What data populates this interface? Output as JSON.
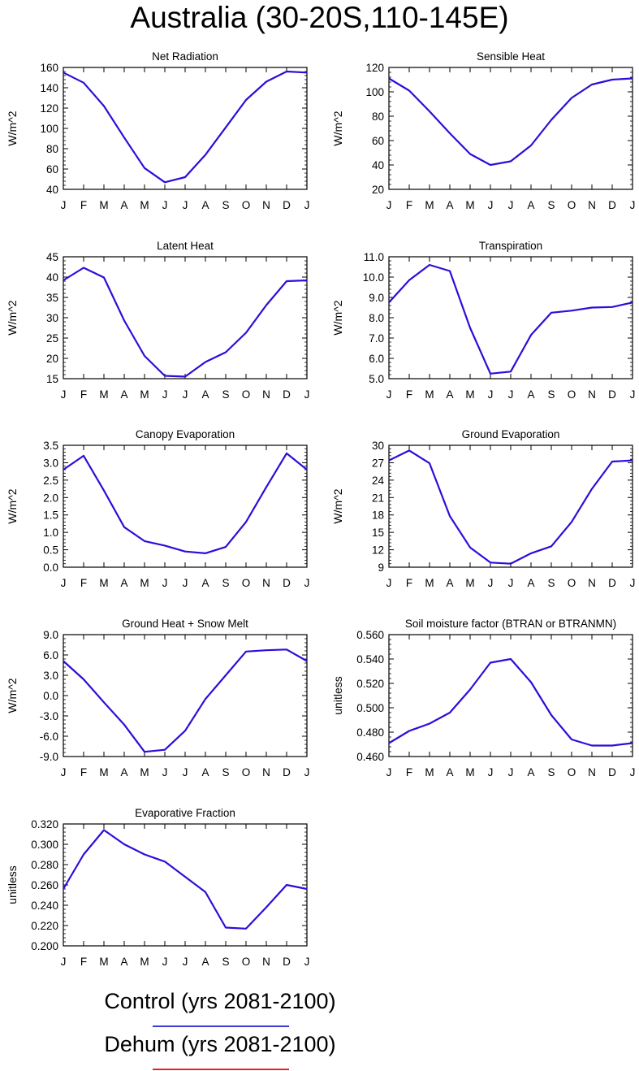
{
  "page_title": "Australia (30-20S,110-145E)",
  "legend": [
    {
      "label": "Control (yrs 2081-2100)",
      "color": "#3b3bd4"
    },
    {
      "label": "Dehum (yrs 2081-2100)",
      "color": "#ee2020"
    }
  ],
  "series_color": "#2a0fd8",
  "chart_data": [
    {
      "type": "line",
      "title": "Net Radiation",
      "ylabel": "W/m^2",
      "categories": [
        "J",
        "F",
        "M",
        "A",
        "M",
        "J",
        "J",
        "A",
        "S",
        "O",
        "N",
        "D",
        "J"
      ],
      "ylim": [
        40,
        160
      ],
      "yticks": [
        40,
        60,
        80,
        100,
        120,
        140,
        160
      ],
      "ytick_labels": [
        "40",
        "60",
        "80",
        "100",
        "120",
        "140",
        "160"
      ],
      "series": [
        {
          "name": "Control (yrs 2081-2100)",
          "values": [
            155,
            145,
            122,
            91,
            61,
            47,
            52,
            74,
            101,
            128,
            146,
            156,
            155
          ]
        }
      ]
    },
    {
      "type": "line",
      "title": "Sensible Heat",
      "ylabel": "W/m^2",
      "categories": [
        "J",
        "F",
        "M",
        "A",
        "M",
        "J",
        "J",
        "A",
        "S",
        "O",
        "N",
        "D",
        "J"
      ],
      "ylim": [
        20,
        120
      ],
      "yticks": [
        20,
        40,
        60,
        80,
        100,
        120
      ],
      "ytick_labels": [
        "20",
        "40",
        "60",
        "80",
        "100",
        "120"
      ],
      "series": [
        {
          "name": "Control (yrs 2081-2100)",
          "values": [
            111,
            101,
            84,
            66,
            49,
            40,
            43,
            56,
            77,
            95,
            106,
            110,
            111
          ]
        }
      ]
    },
    {
      "type": "line",
      "title": "Latent Heat",
      "ylabel": "W/m^2",
      "categories": [
        "J",
        "F",
        "M",
        "A",
        "M",
        "J",
        "J",
        "A",
        "S",
        "O",
        "N",
        "D",
        "J"
      ],
      "ylim": [
        15,
        45
      ],
      "yticks": [
        15,
        20,
        25,
        30,
        35,
        40,
        45
      ],
      "ytick_labels": [
        "15",
        "20",
        "25",
        "30",
        "35",
        "40",
        "45"
      ],
      "series": [
        {
          "name": "Control (yrs 2081-2100)",
          "values": [
            39.2,
            42.3,
            39.9,
            29.3,
            20.6,
            15.7,
            15.5,
            19.1,
            21.5,
            26.3,
            33.1,
            39.0,
            39.2
          ]
        }
      ]
    },
    {
      "type": "line",
      "title": "Transpiration",
      "ylabel": "W/m^2",
      "categories": [
        "J",
        "F",
        "M",
        "A",
        "M",
        "J",
        "J",
        "A",
        "S",
        "O",
        "N",
        "D",
        "J"
      ],
      "ylim": [
        5,
        11
      ],
      "yticks": [
        5,
        6,
        7,
        8,
        9,
        10,
        11
      ],
      "ytick_labels": [
        "5.0",
        "6.0",
        "7.0",
        "8.0",
        "9.0",
        "10.0",
        "11.0"
      ],
      "series": [
        {
          "name": "Control (yrs 2081-2100)",
          "values": [
            8.75,
            9.85,
            10.6,
            10.3,
            7.5,
            5.25,
            5.35,
            7.15,
            8.25,
            8.35,
            8.5,
            8.53,
            8.75
          ]
        }
      ]
    },
    {
      "type": "line",
      "title": "Canopy Evaporation",
      "ylabel": "W/m^2",
      "categories": [
        "J",
        "F",
        "M",
        "A",
        "M",
        "J",
        "J",
        "A",
        "S",
        "O",
        "N",
        "D",
        "J"
      ],
      "ylim": [
        0,
        3.5
      ],
      "yticks": [
        0,
        0.5,
        1,
        1.5,
        2,
        2.5,
        3,
        3.5
      ],
      "ytick_labels": [
        "0.0",
        "0.5",
        "1.0",
        "1.5",
        "2.0",
        "2.5",
        "3.0",
        "3.5"
      ],
      "series": [
        {
          "name": "Control (yrs 2081-2100)",
          "values": [
            2.8,
            3.2,
            2.2,
            1.15,
            0.75,
            0.62,
            0.45,
            0.4,
            0.58,
            1.3,
            2.3,
            3.27,
            2.8
          ]
        }
      ]
    },
    {
      "type": "line",
      "title": "Ground Evaporation",
      "ylabel": "W/m^2",
      "categories": [
        "J",
        "F",
        "M",
        "A",
        "M",
        "J",
        "J",
        "A",
        "S",
        "O",
        "N",
        "D",
        "J"
      ],
      "ylim": [
        9,
        30
      ],
      "yticks": [
        9,
        12,
        15,
        18,
        21,
        24,
        27,
        30
      ],
      "ytick_labels": [
        "9",
        "12",
        "15",
        "18",
        "21",
        "24",
        "27",
        "30"
      ],
      "series": [
        {
          "name": "Control (yrs 2081-2100)",
          "values": [
            27.4,
            29.1,
            26.9,
            17.8,
            12.4,
            9.8,
            9.6,
            11.4,
            12.6,
            16.8,
            22.5,
            27.2,
            27.4
          ]
        }
      ]
    },
    {
      "type": "line",
      "title": "Ground Heat + Snow Melt",
      "ylabel": "W/m^2",
      "categories": [
        "J",
        "F",
        "M",
        "A",
        "M",
        "J",
        "J",
        "A",
        "S",
        "O",
        "N",
        "D",
        "J"
      ],
      "ylim": [
        -9,
        9
      ],
      "yticks": [
        -9,
        -6,
        -3,
        0,
        3,
        6,
        9
      ],
      "ytick_labels": [
        "-9.0",
        "-6.0",
        "-3.0",
        "0.0",
        "3.0",
        "6.0",
        "9.0"
      ],
      "series": [
        {
          "name": "Control (yrs 2081-2100)",
          "values": [
            5.1,
            2.4,
            -1.0,
            -4.3,
            -8.3,
            -8.0,
            -5.2,
            -0.5,
            3.0,
            6.5,
            6.7,
            6.8,
            5.1
          ]
        }
      ]
    },
    {
      "type": "line",
      "title": "Soil moisture factor (BTRAN or BTRANMN)",
      "ylabel": "unitless",
      "categories": [
        "J",
        "F",
        "M",
        "A",
        "M",
        "J",
        "J",
        "A",
        "S",
        "O",
        "N",
        "D",
        "J"
      ],
      "ylim": [
        0.46,
        0.56
      ],
      "yticks": [
        0.46,
        0.48,
        0.5,
        0.52,
        0.54,
        0.56
      ],
      "ytick_labels": [
        "0.460",
        "0.480",
        "0.500",
        "0.520",
        "0.540",
        "0.560"
      ],
      "series": [
        {
          "name": "Control (yrs 2081-2100)",
          "values": [
            0.471,
            0.481,
            0.487,
            0.496,
            0.515,
            0.537,
            0.54,
            0.521,
            0.494,
            0.474,
            0.469,
            0.469,
            0.471
          ]
        }
      ]
    },
    {
      "type": "line",
      "title": "Evaporative Fraction",
      "ylabel": "unitless",
      "categories": [
        "J",
        "F",
        "M",
        "A",
        "M",
        "J",
        "J",
        "A",
        "S",
        "O",
        "N",
        "D",
        "J"
      ],
      "ylim": [
        0.2,
        0.32
      ],
      "yticks": [
        0.2,
        0.22,
        0.24,
        0.26,
        0.28,
        0.3,
        0.32
      ],
      "ytick_labels": [
        "0.200",
        "0.220",
        "0.240",
        "0.260",
        "0.280",
        "0.300",
        "0.320"
      ],
      "series": [
        {
          "name": "Control (yrs 2081-2100)",
          "values": [
            0.256,
            0.29,
            0.314,
            0.3,
            0.29,
            0.283,
            0.268,
            0.253,
            0.218,
            0.217,
            0.238,
            0.26,
            0.256
          ]
        }
      ]
    }
  ]
}
